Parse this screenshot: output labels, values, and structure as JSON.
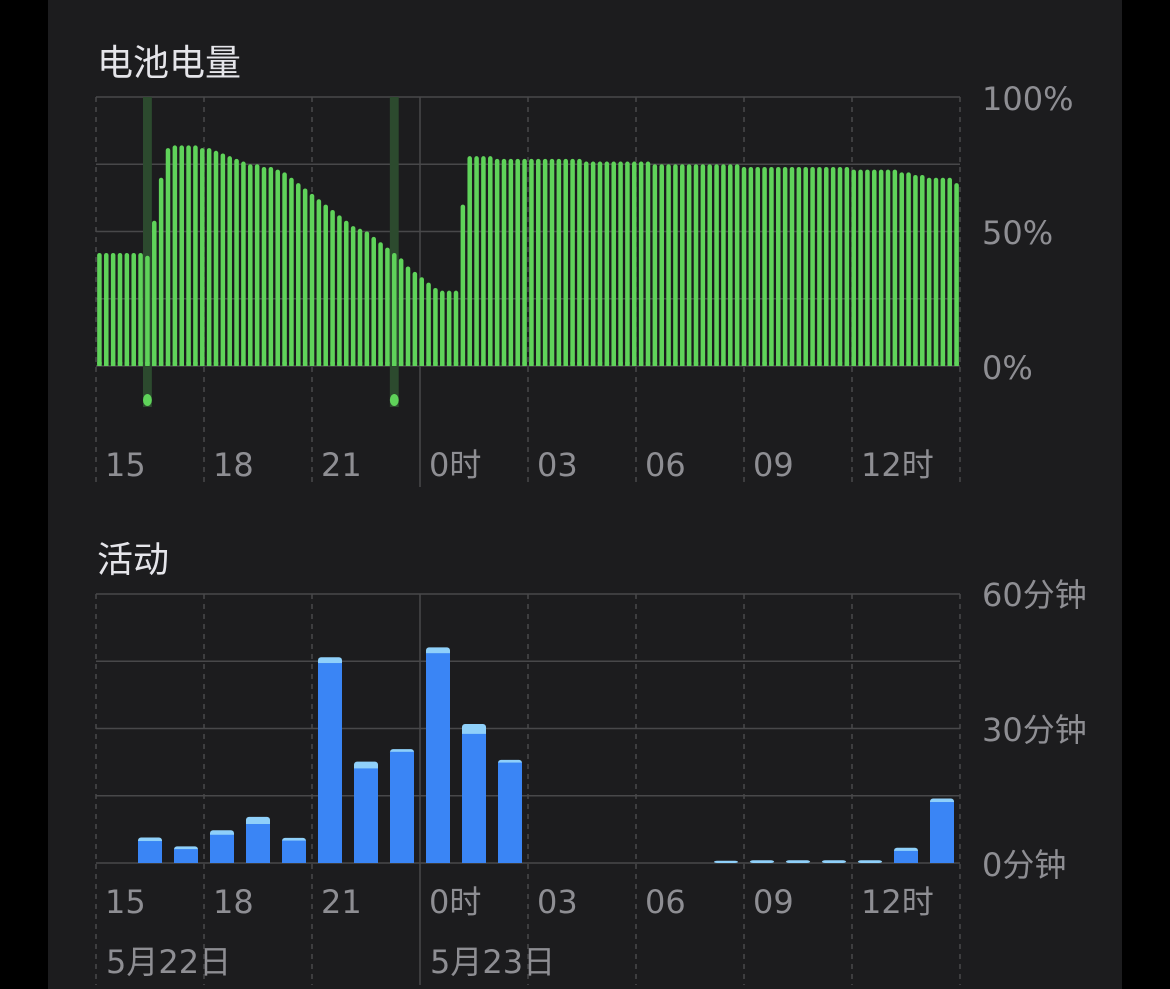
{
  "colors": {
    "background": "#000000",
    "panel": "#1c1c1e",
    "battery_bar": "#5fd35a",
    "charging_band": "#2c4a2e",
    "charging_marker": "#5fd35a",
    "activity_bar": "#3a85f5",
    "activity_bar_top": "#8fd0fa",
    "text_title": "#e5e5ea",
    "text_label": "#8e8e93",
    "grid": "#48484a"
  },
  "battery": {
    "title": "电池电量",
    "y_tick_labels": [
      "100%",
      "50%",
      "0%"
    ],
    "x_tick_labels": [
      "15",
      "18",
      "21",
      "0时",
      "03",
      "06",
      "09",
      "12时"
    ]
  },
  "activity": {
    "title": "活动",
    "y_tick_labels": [
      "60分钟",
      "30分钟",
      "0分钟"
    ],
    "x_tick_labels": [
      "15",
      "18",
      "21",
      "0时",
      "03",
      "06",
      "09",
      "12时"
    ],
    "date_labels": [
      "5月22日",
      "5月23日"
    ]
  },
  "chart_data": [
    {
      "type": "bar",
      "title": "电池电量",
      "x_start": "15:00",
      "x_end": "15:00",
      "step_minutes": 15,
      "ylim": [
        0,
        100
      ],
      "unit": "%",
      "charging_periods": [
        [
          "16:45",
          "17:00"
        ],
        [
          "1:45",
          "2:00"
        ]
      ],
      "values": [
        42,
        42,
        42,
        42,
        42,
        42,
        42,
        41,
        54,
        70,
        81,
        82,
        82,
        82,
        82,
        81,
        81,
        80,
        79,
        78,
        77,
        76,
        75,
        75,
        74,
        74,
        73,
        72,
        70,
        68,
        66,
        64,
        62,
        60,
        58,
        56,
        54,
        52,
        51,
        50,
        48,
        46,
        44,
        42,
        40,
        37,
        35,
        33,
        31,
        29,
        28,
        28,
        28,
        60,
        78,
        78,
        78,
        78,
        77,
        77,
        77,
        77,
        77,
        77,
        77,
        77,
        77,
        77,
        77,
        77,
        77,
        76,
        76,
        76,
        76,
        76,
        76,
        76,
        76,
        76,
        76,
        75,
        75,
        75,
        75,
        75,
        75,
        75,
        75,
        75,
        75,
        75,
        75,
        75,
        74,
        74,
        74,
        74,
        74,
        74,
        74,
        74,
        74,
        74,
        74,
        74,
        74,
        74,
        74,
        74,
        73,
        73,
        73,
        73,
        73,
        73,
        73,
        72,
        72,
        71,
        71,
        70,
        70,
        70,
        70,
        68
      ]
    },
    {
      "type": "bar",
      "title": "活动",
      "categories": [
        "15",
        "16",
        "17",
        "18",
        "19",
        "20",
        "21",
        "22",
        "23",
        "0",
        "1",
        "2",
        "3",
        "4",
        "5",
        "6",
        "7",
        "8",
        "9",
        "10",
        "11",
        "12",
        "13",
        "14"
      ],
      "ylim": [
        0,
        60
      ],
      "unit": "分钟",
      "series": [
        {
          "values": [
            0,
            4.9,
            3.1,
            6.3,
            8.7,
            5.0,
            44.6,
            21.1,
            24.8,
            46.8,
            28.8,
            22.4,
            0,
            0,
            0,
            0,
            0,
            0,
            0,
            0,
            0,
            0,
            2.7,
            13.6
          ]
        },
        {
          "values": [
            0,
            0.8,
            0.6,
            1.0,
            1.6,
            0.6,
            1.3,
            1.5,
            0.6,
            1.3,
            2.2,
            0.6,
            0,
            0,
            0,
            0,
            0,
            0.5,
            0.6,
            0.6,
            0.6,
            0.6,
            0.7,
            0.8
          ]
        }
      ]
    }
  ]
}
